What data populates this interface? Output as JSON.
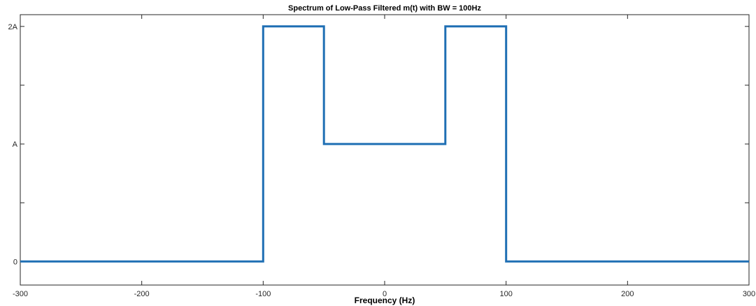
{
  "chart_data": {
    "type": "line",
    "title": "Spectrum of Low-Pass Filtered m(t) with BW = 100Hz",
    "xlabel": "Frequency (Hz)",
    "ylabel": "",
    "xlim": [
      -300,
      300
    ],
    "ylim": [
      -0.2,
      2.1
    ],
    "grid": false,
    "legend": "none",
    "line_color": "#1f6fb4",
    "x_ticks": [
      {
        "value": -300,
        "label": "-300"
      },
      {
        "value": -200,
        "label": "-200"
      },
      {
        "value": -100,
        "label": "-100"
      },
      {
        "value": 0,
        "label": "0"
      },
      {
        "value": 100,
        "label": "100"
      },
      {
        "value": 200,
        "label": "200"
      },
      {
        "value": 300,
        "label": "300"
      }
    ],
    "y_ticks": [
      {
        "value": 0,
        "label": "0"
      },
      {
        "value": 0.5,
        "label": ""
      },
      {
        "value": 1,
        "label": "A"
      },
      {
        "value": 1.5,
        "label": ""
      },
      {
        "value": 2,
        "label": "2A"
      }
    ],
    "series": [
      {
        "x": [
          -300,
          -100,
          -100,
          -50,
          -50,
          50,
          50,
          100,
          100,
          300
        ],
        "y": [
          0,
          0,
          2,
          2,
          1,
          1,
          2,
          2,
          0,
          0
        ]
      }
    ]
  }
}
